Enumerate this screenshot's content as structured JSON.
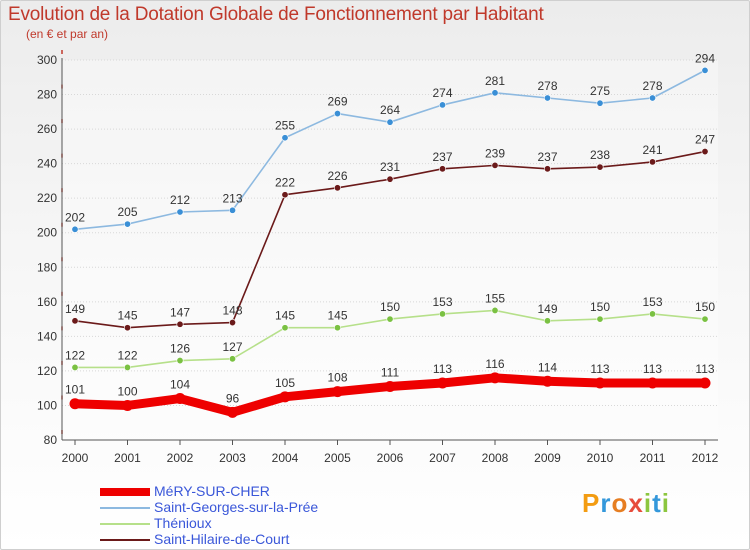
{
  "title": "Evolution de la Dotation Globale de Fonctionnement par Habitant",
  "subtitle": "(en € et par an)",
  "brand": {
    "text": "Proxiti",
    "letters": [
      {
        "ch": "P",
        "color": "#f39c12"
      },
      {
        "ch": "r",
        "color": "#3498db"
      },
      {
        "ch": "o",
        "color": "#e67e22"
      },
      {
        "ch": "x",
        "color": "#e74c3c"
      },
      {
        "ch": "i",
        "color": "#8cc63f"
      },
      {
        "ch": "t",
        "color": "#3498db"
      },
      {
        "ch": "i",
        "color": "#8cc63f"
      }
    ]
  },
  "chart_data": {
    "type": "line",
    "title": "Evolution de la Dotation Globale de Fonctionnement par Habitant",
    "subtitle": "(en € et par an)",
    "xlabel": "",
    "ylabel": "",
    "categories": [
      "2000",
      "2001",
      "2002",
      "2003",
      "2004",
      "2005",
      "2006",
      "2007",
      "2008",
      "2009",
      "2010",
      "2011",
      "2012"
    ],
    "ylim": [
      80,
      300
    ],
    "yticks": [
      80,
      100,
      120,
      140,
      160,
      180,
      200,
      220,
      240,
      260,
      280,
      300
    ],
    "grid": "y",
    "legend_position": "bottom-left",
    "series": [
      {
        "name": "MéRY-SUR-CHER",
        "color": "#ee0000",
        "line_color": "#ee0000",
        "emphasis": "thick",
        "values": [
          101,
          100,
          104,
          96,
          105,
          108,
          111,
          113,
          116,
          114,
          113,
          113,
          113
        ]
      },
      {
        "name": "Saint-Georges-sur-la-Prée",
        "color": "#3a8fd6",
        "line_color": "#8db9e0",
        "emphasis": "normal",
        "values": [
          202,
          205,
          212,
          213,
          255,
          269,
          264,
          274,
          281,
          278,
          275,
          278,
          294
        ]
      },
      {
        "name": "Thénioux",
        "color": "#7ac142",
        "line_color": "#b6e08a",
        "emphasis": "normal",
        "values": [
          122,
          122,
          126,
          127,
          145,
          145,
          150,
          153,
          155,
          149,
          150,
          153,
          150
        ]
      },
      {
        "name": "Saint-Hilaire-de-Court",
        "color": "#6b1a1a",
        "line_color": "#6b1a1a",
        "emphasis": "normal",
        "values": [
          149,
          145,
          147,
          148,
          222,
          226,
          231,
          237,
          239,
          237,
          238,
          241,
          247
        ]
      }
    ]
  }
}
